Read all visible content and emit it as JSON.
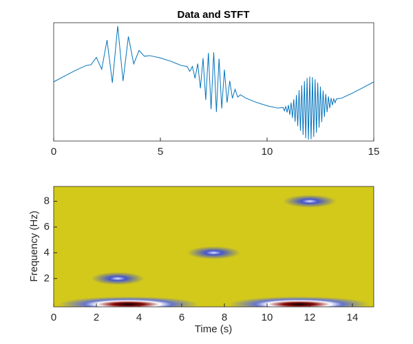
{
  "chart_data": [
    {
      "type": "line",
      "title": "Data and STFT",
      "color": "#0072bd",
      "x": [
        0,
        0.5,
        1,
        1.5,
        1.75,
        2,
        2.25,
        2.5,
        2.75,
        3,
        3.25,
        3.5,
        3.75,
        4,
        4.25,
        4.5,
        5,
        5.5,
        6,
        6.25,
        6.375,
        6.5,
        6.625,
        6.75,
        6.875,
        7,
        7.125,
        7.25,
        7.375,
        7.5,
        7.625,
        7.75,
        7.875,
        8,
        8.125,
        8.25,
        8.375,
        8.5,
        8.625,
        8.75,
        9,
        9.5,
        10,
        10.5,
        10.75,
        10.8125,
        10.875,
        10.9375,
        11,
        11.0625,
        11.125,
        11.1875,
        11.25,
        11.3125,
        11.375,
        11.4375,
        11.5,
        11.5625,
        11.625,
        11.6875,
        11.75,
        11.8125,
        11.875,
        11.9375,
        12,
        12.0625,
        12.125,
        12.1875,
        12.25,
        12.3125,
        12.375,
        12.4375,
        12.5,
        12.5625,
        12.625,
        12.6875,
        12.75,
        12.8125,
        12.875,
        12.9375,
        13,
        13.0625,
        13.125,
        13.1875,
        13.25,
        13.5,
        14,
        14.5,
        15
      ],
      "values": [
        0,
        0.145,
        0.285,
        0.411,
        0.435,
        0.621,
        0.322,
        1.061,
        -0.023,
        1.416,
        0.022,
        1.151,
        0.456,
        0.797,
        0.651,
        0.666,
        0.606,
        0.52,
        0.411,
        0.393,
        0.266,
        0.391,
        0.092,
        0.462,
        -0.163,
        0.6,
        -0.457,
        0.735,
        -0.691,
        0.75,
        -0.763,
        0.589,
        -0.675,
        0.31,
        -0.525,
        0.026,
        -0.416,
        -0.189,
        -0.386,
        -0.327,
        -0.411,
        -0.52,
        -0.606,
        -0.666,
        -0.649,
        -0.734,
        -0.624,
        -0.774,
        -0.588,
        -0.835,
        -0.526,
        -0.914,
        -0.44,
        -1.011,
        -0.333,
        -1.123,
        -0.21,
        -1.239,
        -0.086,
        -1.345,
        0.022,
        -1.426,
        0.099,
        -1.465,
        0.134,
        -1.455,
        0.12,
        -1.394,
        0.066,
        -1.29,
        -0.019,
        -1.16,
        -0.12,
        -1.021,
        -0.22,
        -0.887,
        -0.306,
        -0.768,
        -0.369,
        -0.668,
        -0.41,
        -0.59,
        -0.43,
        -0.529,
        -0.433,
        -0.411,
        -0.285,
        -0.145,
        0
      ],
      "xlim": [
        0,
        15
      ],
      "ylim": [
        -1.5,
        1.5
      ],
      "xticks": [
        0,
        5,
        10,
        15
      ]
    },
    {
      "type": "heatmap",
      "xlabel": "Time (s)",
      "ylabel": "Frequency (Hz)",
      "color": "#d3c91a",
      "x": [
        3,
        7.5,
        12,
        3.5,
        11.5
      ],
      "y": [
        2,
        4,
        8,
        0,
        0
      ],
      "colors": [
        "#3d4fd6",
        "#3d4fd6",
        "#3d4fd6",
        "#8b0a0a",
        "#8b0a0a"
      ],
      "xlim": [
        0,
        15
      ],
      "ylim": [
        -0.2,
        9.15
      ],
      "xticks": [
        0,
        2,
        4,
        6,
        8,
        10,
        12,
        14
      ],
      "yticks": [
        2,
        4,
        6,
        8
      ]
    }
  ]
}
